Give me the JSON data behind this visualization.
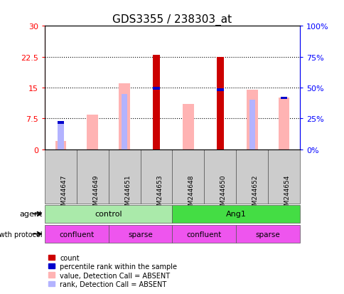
{
  "title": "GDS3355 / 238303_at",
  "samples": [
    "GSM244647",
    "GSM244649",
    "GSM244651",
    "GSM244653",
    "GSM244648",
    "GSM244650",
    "GSM244652",
    "GSM244654"
  ],
  "count_values": [
    0,
    0,
    0,
    23,
    0,
    22.5,
    0,
    0
  ],
  "percentile_rank_values": [
    6.5,
    0,
    0,
    14.8,
    0,
    14.5,
    0,
    12.5
  ],
  "absent_value_bars": [
    2.0,
    8.5,
    16.0,
    0,
    11.0,
    0,
    14.5,
    12.5
  ],
  "absent_rank_bars": [
    6.5,
    0,
    13.5,
    0,
    0,
    0,
    12.0,
    0
  ],
  "ylim_left": [
    0,
    30
  ],
  "ylim_right": [
    0,
    100
  ],
  "yticks_left": [
    0,
    7.5,
    15,
    22.5,
    30
  ],
  "ytick_labels_left": [
    "0",
    "7.5",
    "15",
    "22.5",
    "30"
  ],
  "yticks_right": [
    0,
    25,
    50,
    75,
    100
  ],
  "ytick_labels_right": [
    "0%",
    "25%",
    "50%",
    "75%",
    "100%"
  ],
  "color_count": "#cc0000",
  "color_percentile": "#0000cc",
  "color_absent_value": "#ffb3b3",
  "color_absent_rank": "#b3b3ff",
  "agent_groups": [
    {
      "label": "control",
      "start": 0,
      "end": 4,
      "color": "#aaeaaa"
    },
    {
      "label": "Ang1",
      "start": 4,
      "end": 8,
      "color": "#44dd44"
    }
  ],
  "growth_groups": [
    {
      "label": "confluent",
      "start": 0,
      "end": 2,
      "color": "#ee55ee"
    },
    {
      "label": "sparse",
      "start": 2,
      "end": 4,
      "color": "#ee55ee"
    },
    {
      "label": "confluent",
      "start": 4,
      "end": 6,
      "color": "#ee55ee"
    },
    {
      "label": "sparse",
      "start": 6,
      "end": 8,
      "color": "#ee55ee"
    }
  ],
  "legend_items": [
    {
      "label": "count",
      "color": "#cc0000"
    },
    {
      "label": "percentile rank within the sample",
      "color": "#0000cc"
    },
    {
      "label": "value, Detection Call = ABSENT",
      "color": "#ffb3b3"
    },
    {
      "label": "rank, Detection Call = ABSENT",
      "color": "#b3b3ff"
    }
  ],
  "agent_label": "agent",
  "growth_label": "growth protocol"
}
